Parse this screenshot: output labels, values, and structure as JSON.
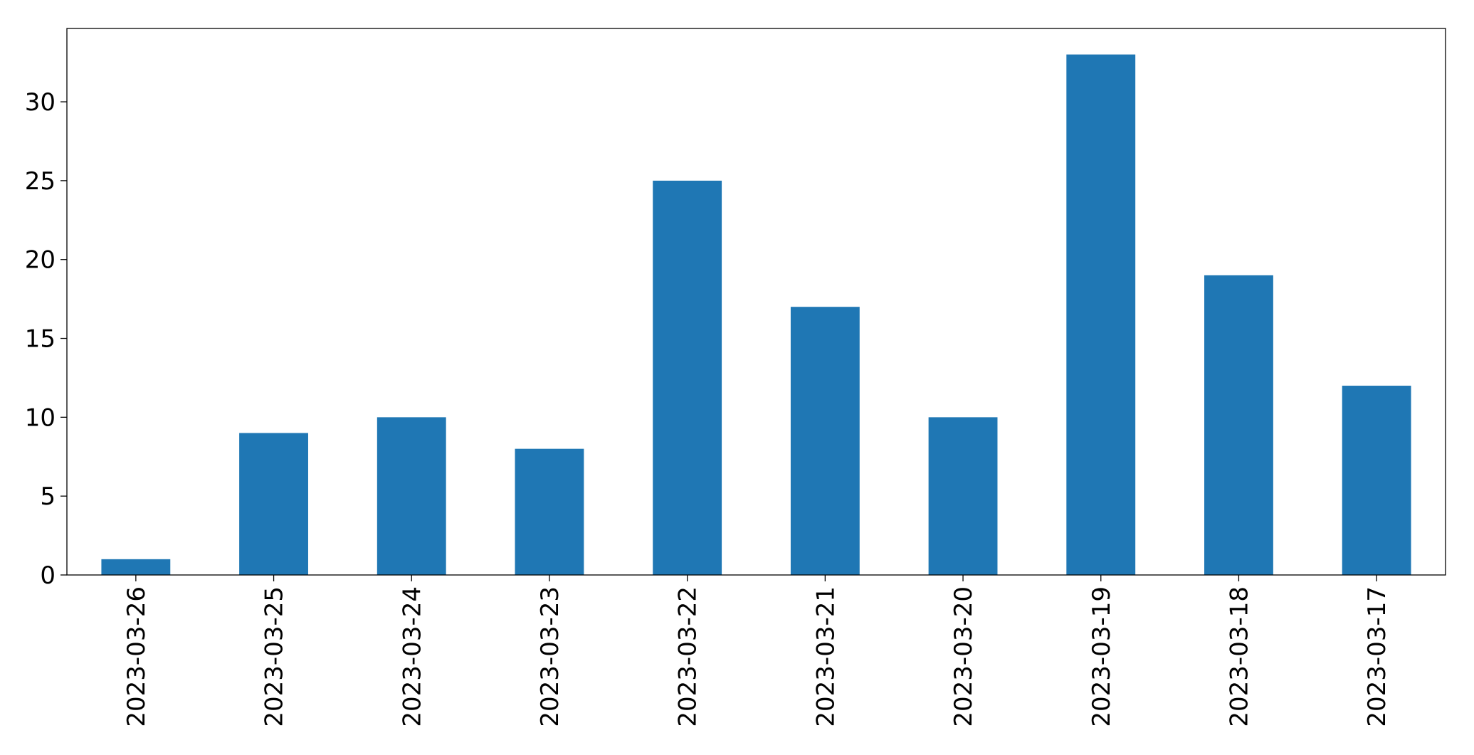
{
  "chart_data": {
    "type": "bar",
    "categories": [
      "2023-03-26",
      "2023-03-25",
      "2023-03-24",
      "2023-03-23",
      "2023-03-22",
      "2023-03-21",
      "2023-03-20",
      "2023-03-19",
      "2023-03-18",
      "2023-03-17"
    ],
    "values": [
      1,
      9,
      10,
      8,
      25,
      17,
      10,
      33,
      19,
      12
    ],
    "color": "#1f77b4",
    "ylim": [
      0,
      34.65
    ],
    "yticks": [
      0,
      5,
      10,
      15,
      20,
      25,
      30
    ],
    "grid": false
  }
}
